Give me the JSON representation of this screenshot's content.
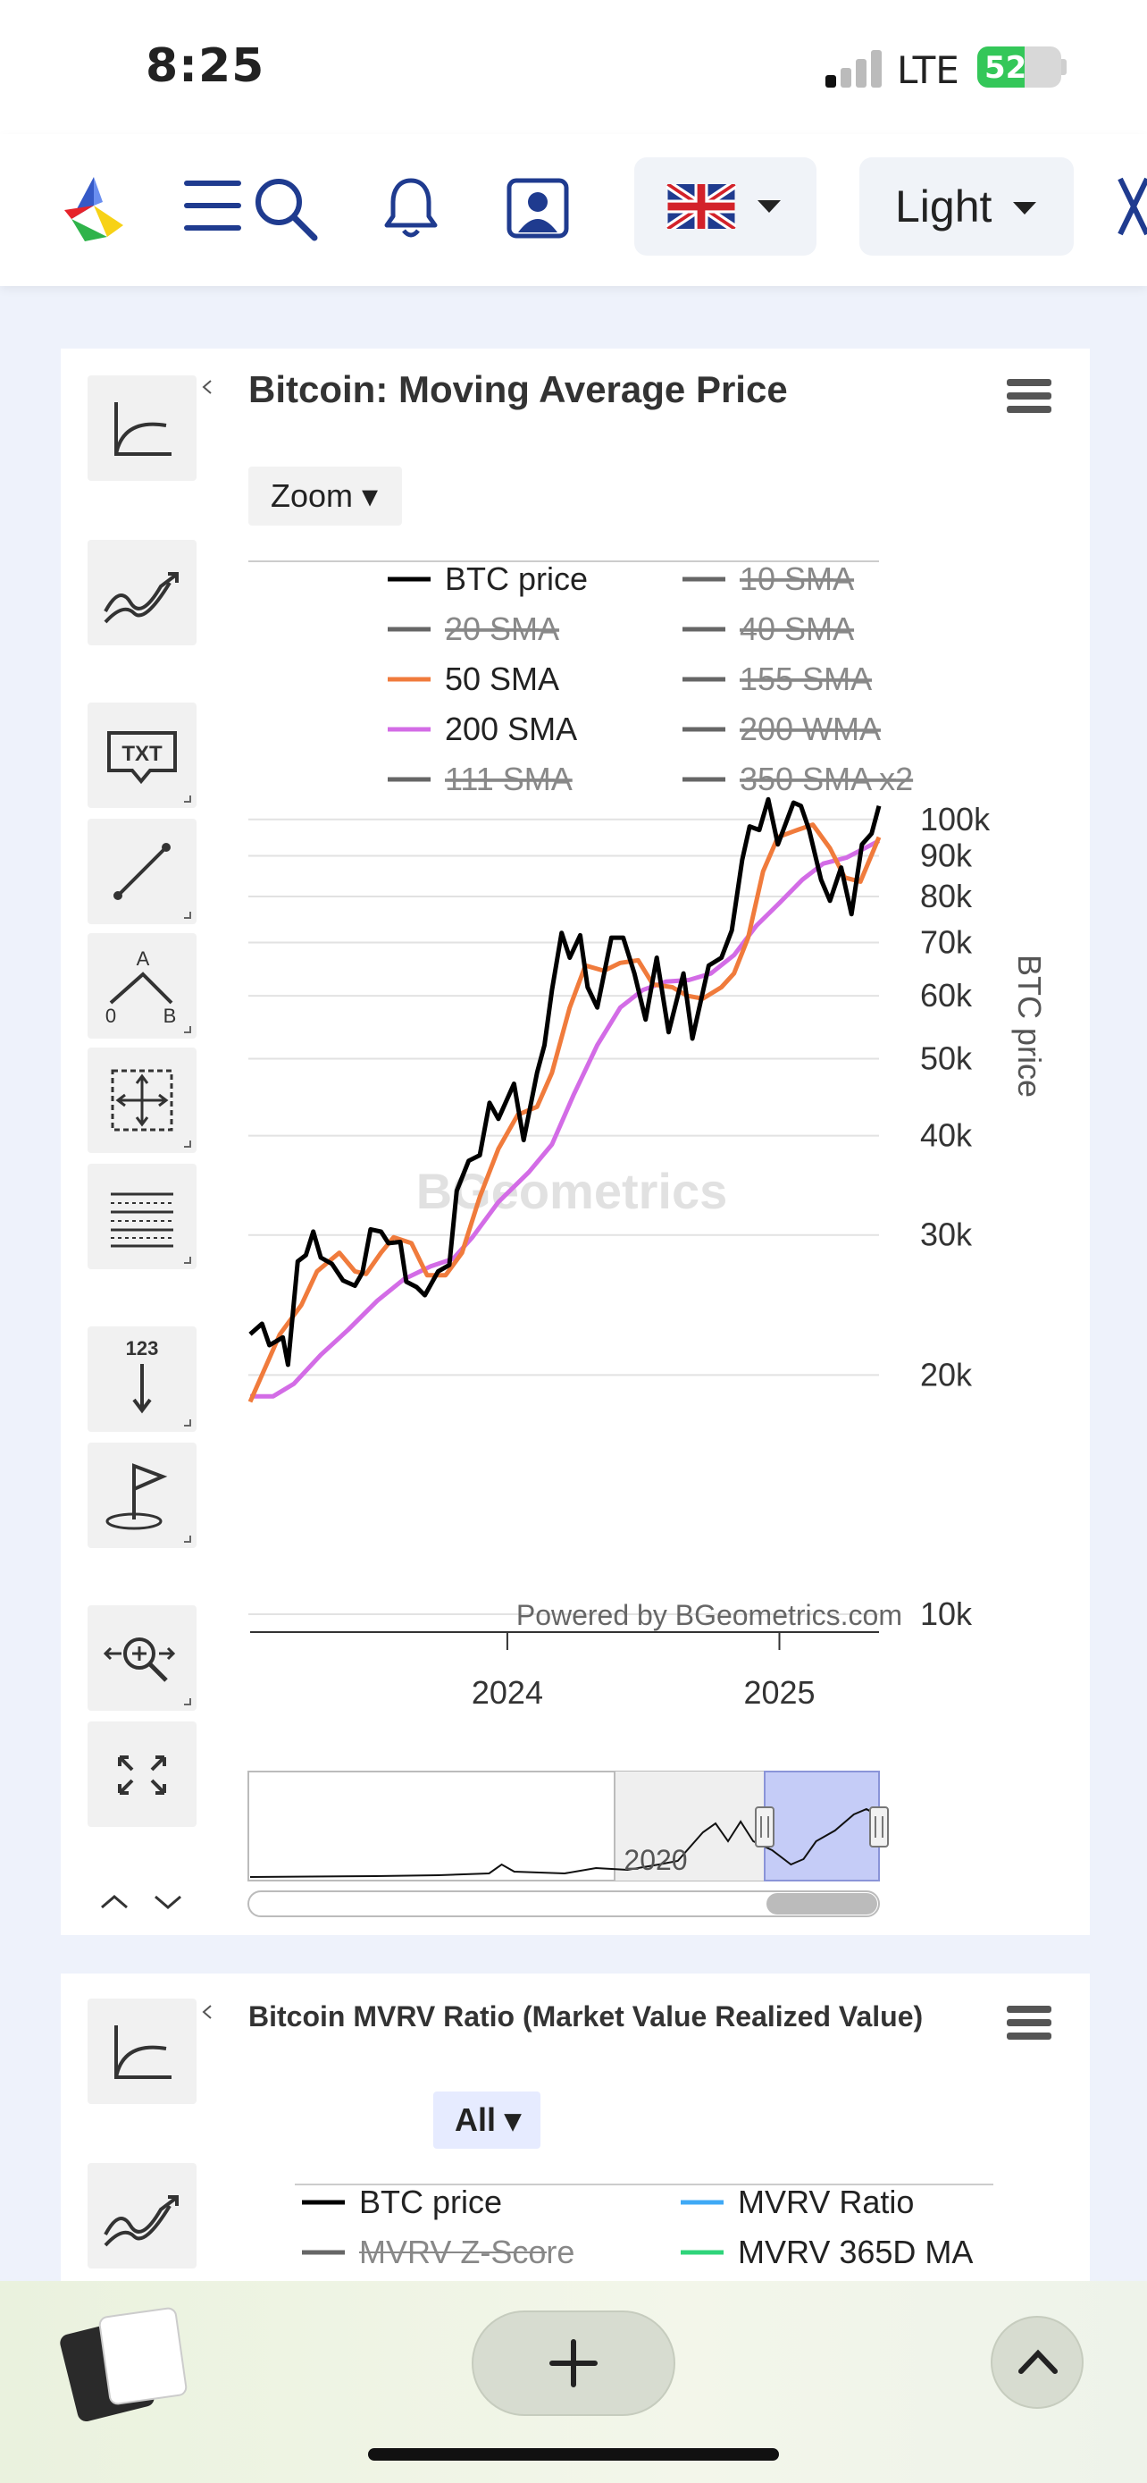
{
  "status_bar": {
    "time": "8:25",
    "network": "LTE",
    "battery": "52"
  },
  "topnav": {
    "theme_label": "Light"
  },
  "chart1": {
    "title": "Bitcoin: Moving Average Price",
    "zoom_label": "Zoom ▾",
    "credit": "Powered by BGeometrics.com",
    "watermark": "BGeometrics",
    "navigator_label": "2020",
    "legend": [
      {
        "label": "BTC price",
        "color": "#000000",
        "hidden": false
      },
      {
        "label": "10 SMA",
        "color": "#666666",
        "hidden": true
      },
      {
        "label": "20 SMA",
        "color": "#666666",
        "hidden": true
      },
      {
        "label": "40 SMA",
        "color": "#666666",
        "hidden": true
      },
      {
        "label": "50 SMA",
        "color": "#f07b3c",
        "hidden": false
      },
      {
        "label": "155 SMA",
        "color": "#666666",
        "hidden": true
      },
      {
        "label": "200 SMA",
        "color": "#d36ce6",
        "hidden": false
      },
      {
        "label": "200 WMA",
        "color": "#666666",
        "hidden": true
      },
      {
        "label": "111 SMA",
        "color": "#666666",
        "hidden": true
      },
      {
        "label": "350 SMA x2",
        "color": "#666666",
        "hidden": true
      }
    ]
  },
  "chart2": {
    "title": "Bitcoin MVRV Ratio (Market Value Realized Value)",
    "range_label": "All ▾",
    "legend": [
      {
        "label": "BTC price",
        "color": "#000000",
        "hidden": false
      },
      {
        "label": "MVRV Ratio",
        "color": "#3fa9f5",
        "hidden": false
      },
      {
        "label": "MVRV Z-Score",
        "color": "#666666",
        "hidden": true
      },
      {
        "label": "MVRV 365D MA",
        "color": "#2fd47a",
        "hidden": false
      }
    ]
  },
  "chart_data": {
    "type": "line",
    "title": "Bitcoin: Moving Average Price",
    "ylabel": "BTC price",
    "y_scale": "log",
    "ylim": [
      10000,
      110000
    ],
    "xlim": [
      "2023-01-20",
      "2025-05-15"
    ],
    "x_ticks": [
      "2024",
      "2025"
    ],
    "y_ticks": [
      "10k",
      "20k",
      "30k",
      "40k",
      "50k",
      "60k",
      "70k",
      "80k",
      "90k",
      "100k"
    ],
    "grid": true,
    "legend_position": "top",
    "series": [
      {
        "name": "BTC price",
        "color": "#000000",
        "points": [
          [
            "2023-01-20",
            22500
          ],
          [
            "2023-02-05",
            23200
          ],
          [
            "2023-02-15",
            21800
          ],
          [
            "2023-03-05",
            22300
          ],
          [
            "2023-03-12",
            20600
          ],
          [
            "2023-03-25",
            27800
          ],
          [
            "2023-04-05",
            28300
          ],
          [
            "2023-04-15",
            30300
          ],
          [
            "2023-04-25",
            28100
          ],
          [
            "2023-05-10",
            27600
          ],
          [
            "2023-05-25",
            26300
          ],
          [
            "2023-06-10",
            25900
          ],
          [
            "2023-06-20",
            26900
          ],
          [
            "2023-07-01",
            30500
          ],
          [
            "2023-07-15",
            30300
          ],
          [
            "2023-07-25",
            29300
          ],
          [
            "2023-08-10",
            29400
          ],
          [
            "2023-08-18",
            26200
          ],
          [
            "2023-09-01",
            25800
          ],
          [
            "2023-09-12",
            25200
          ],
          [
            "2023-09-30",
            27000
          ],
          [
            "2023-10-15",
            27500
          ],
          [
            "2023-10-25",
            34100
          ],
          [
            "2023-11-10",
            37200
          ],
          [
            "2023-11-25",
            37800
          ],
          [
            "2023-12-08",
            44000
          ],
          [
            "2023-12-20",
            42000
          ],
          [
            "2024-01-10",
            46500
          ],
          [
            "2024-01-23",
            39500
          ],
          [
            "2024-02-10",
            48000
          ],
          [
            "2024-02-20",
            52000
          ],
          [
            "2024-03-01",
            61000
          ],
          [
            "2024-03-14",
            72000
          ],
          [
            "2024-03-25",
            67000
          ],
          [
            "2024-04-08",
            71500
          ],
          [
            "2024-04-18",
            61500
          ],
          [
            "2024-05-01",
            58000
          ],
          [
            "2024-05-20",
            71000
          ],
          [
            "2024-06-05",
            71000
          ],
          [
            "2024-06-20",
            64000
          ],
          [
            "2024-07-05",
            56000
          ],
          [
            "2024-07-20",
            67000
          ],
          [
            "2024-08-05",
            54000
          ],
          [
            "2024-08-25",
            64000
          ],
          [
            "2024-09-06",
            53000
          ],
          [
            "2024-09-28",
            65500
          ],
          [
            "2024-10-15",
            67000
          ],
          [
            "2024-10-29",
            72500
          ],
          [
            "2024-11-12",
            89000
          ],
          [
            "2024-11-22",
            98000
          ],
          [
            "2024-12-05",
            97000
          ],
          [
            "2024-12-17",
            106000
          ],
          [
            "2024-12-30",
            93000
          ],
          [
            "2025-01-20",
            105000
          ],
          [
            "2025-01-30",
            104000
          ],
          [
            "2025-02-10",
            97000
          ],
          [
            "2025-02-26",
            84000
          ],
          [
            "2025-03-10",
            79000
          ],
          [
            "2025-03-25",
            87000
          ],
          [
            "2025-04-08",
            76000
          ],
          [
            "2025-04-22",
            93000
          ],
          [
            "2025-05-05",
            96000
          ],
          [
            "2025-05-15",
            104000
          ]
        ]
      },
      {
        "name": "50 SMA",
        "color": "#f07b3c",
        "points": [
          [
            "2023-01-20",
            18500
          ],
          [
            "2023-02-10",
            20500
          ],
          [
            "2023-03-01",
            22500
          ],
          [
            "2023-03-30",
            24500
          ],
          [
            "2023-04-20",
            27000
          ],
          [
            "2023-05-20",
            28500
          ],
          [
            "2023-06-10",
            27000
          ],
          [
            "2023-06-25",
            26800
          ],
          [
            "2023-07-15",
            28500
          ],
          [
            "2023-08-01",
            29800
          ],
          [
            "2023-08-25",
            29300
          ],
          [
            "2023-09-15",
            26700
          ],
          [
            "2023-10-10",
            26700
          ],
          [
            "2023-11-01",
            28500
          ],
          [
            "2023-11-25",
            33500
          ],
          [
            "2023-12-20",
            38500
          ],
          [
            "2024-01-15",
            42500
          ],
          [
            "2024-02-10",
            43500
          ],
          [
            "2024-03-01",
            48000
          ],
          [
            "2024-03-25",
            58000
          ],
          [
            "2024-04-15",
            65500
          ],
          [
            "2024-05-10",
            64500
          ],
          [
            "2024-06-01",
            66000
          ],
          [
            "2024-06-25",
            66500
          ],
          [
            "2024-07-15",
            62000
          ],
          [
            "2024-08-10",
            61500
          ],
          [
            "2024-08-30",
            60000
          ],
          [
            "2024-09-20",
            59500
          ],
          [
            "2024-10-15",
            61500
          ],
          [
            "2024-11-01",
            64000
          ],
          [
            "2024-11-20",
            71000
          ],
          [
            "2024-12-10",
            86000
          ],
          [
            "2024-12-30",
            95000
          ],
          [
            "2025-01-25",
            97000
          ],
          [
            "2025-02-15",
            98500
          ],
          [
            "2025-03-10",
            92000
          ],
          [
            "2025-03-30",
            84500
          ],
          [
            "2025-04-20",
            83500
          ],
          [
            "2025-05-15",
            95000
          ]
        ]
      },
      {
        "name": "200 SMA",
        "color": "#d36ce6",
        "points": [
          [
            "2023-01-20",
            18800
          ],
          [
            "2023-02-20",
            18800
          ],
          [
            "2023-03-20",
            19500
          ],
          [
            "2023-04-25",
            21200
          ],
          [
            "2023-06-01",
            22800
          ],
          [
            "2023-07-10",
            24800
          ],
          [
            "2023-08-15",
            26400
          ],
          [
            "2023-09-20",
            27400
          ],
          [
            "2023-10-20",
            28000
          ],
          [
            "2023-11-15",
            29800
          ],
          [
            "2023-12-20",
            33000
          ],
          [
            "2024-01-30",
            36000
          ],
          [
            "2024-03-01",
            39000
          ],
          [
            "2024-03-30",
            45000
          ],
          [
            "2024-05-01",
            52000
          ],
          [
            "2024-06-01",
            58000
          ],
          [
            "2024-07-01",
            61000
          ],
          [
            "2024-08-01",
            62500
          ],
          [
            "2024-09-01",
            62800
          ],
          [
            "2024-10-01",
            64000
          ],
          [
            "2024-11-01",
            67500
          ],
          [
            "2024-12-01",
            73500
          ],
          [
            "2025-01-01",
            78500
          ],
          [
            "2025-02-01",
            84000
          ],
          [
            "2025-03-01",
            88000
          ],
          [
            "2025-04-01",
            89500
          ],
          [
            "2025-05-15",
            94000
          ]
        ]
      }
    ]
  }
}
